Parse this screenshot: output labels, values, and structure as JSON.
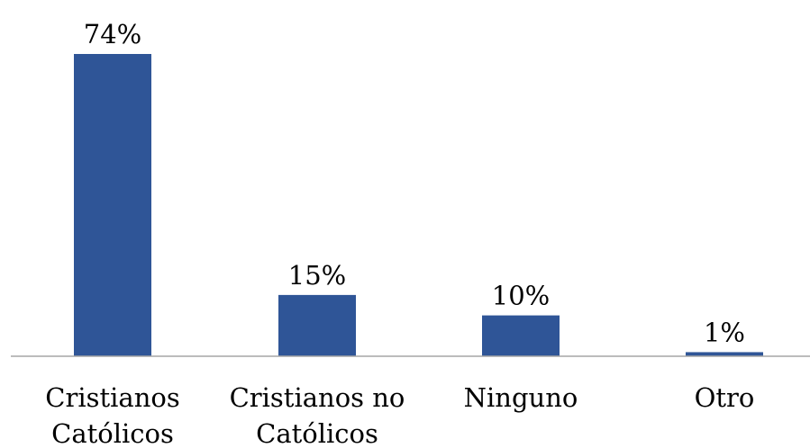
{
  "chart_data": {
    "type": "bar",
    "categories": [
      [
        "Cristianos",
        "Católicos"
      ],
      [
        "Cristianos no",
        "Católicos"
      ],
      [
        "Ninguno"
      ],
      [
        "Otro"
      ]
    ],
    "values": [
      74,
      15,
      10,
      1
    ],
    "value_labels": [
      "74%",
      "15%",
      "10%",
      "1%"
    ],
    "bar_color": "#2F5597",
    "axis_color": "#A6A6A6",
    "ylim": [
      0,
      74
    ],
    "grid": false,
    "legend": "none"
  }
}
